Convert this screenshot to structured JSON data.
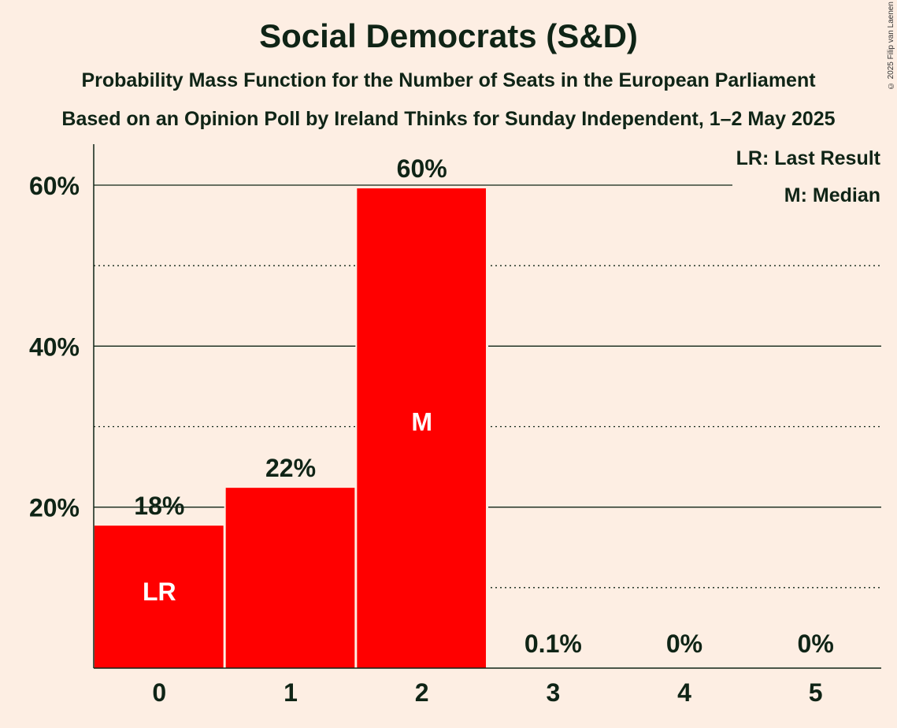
{
  "chart_data": {
    "type": "bar",
    "title": "Social Democrats (S&D)",
    "subtitle": "Probability Mass Function for the Number of Seats in the European Parliament",
    "subtitle2": "Based on an Opinion Poll by Ireland Thinks for Sunday Independent, 1–2 May 2025",
    "xlabel": "",
    "ylabel": "",
    "categories": [
      "0",
      "1",
      "2",
      "3",
      "4",
      "5"
    ],
    "values": [
      17.7,
      22.4,
      59.6,
      0.1,
      0,
      0
    ],
    "data_labels": [
      "18%",
      "22%",
      "60%",
      "0.1%",
      "0%",
      "0%"
    ],
    "bar_markers": [
      "LR",
      "",
      "M",
      "",
      "",
      ""
    ],
    "ylim": [
      0,
      65
    ],
    "y_ticks": [
      20,
      40,
      60
    ],
    "y_tick_labels": [
      "20%",
      "40%",
      "60%"
    ],
    "minor_gridlines": [
      10,
      30,
      50
    ],
    "legend": [
      "LR: Last Result",
      "M: Median"
    ],
    "legend_position": "top-right",
    "bar_color": "#FF0000",
    "background_color": "#FDEEE3"
  },
  "copyright": "© 2025 Filip van Laenen"
}
